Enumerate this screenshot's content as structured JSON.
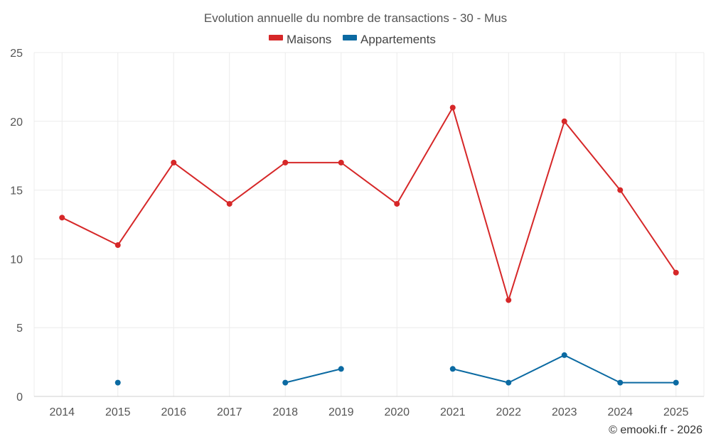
{
  "chart_data": {
    "type": "line",
    "title": "Evolution annuelle du nombre de transactions - 30 - Mus",
    "categories": [
      "2014",
      "2015",
      "2016",
      "2017",
      "2018",
      "2019",
      "2020",
      "2021",
      "2022",
      "2023",
      "2024",
      "2025"
    ],
    "series": [
      {
        "name": "Maisons",
        "color": "#d62728",
        "values": [
          13,
          11,
          17,
          14,
          17,
          17,
          14,
          21,
          7,
          20,
          15,
          9
        ]
      },
      {
        "name": "Appartements",
        "color": "#0b6aa2",
        "values": [
          null,
          1,
          null,
          null,
          1,
          2,
          null,
          2,
          1,
          3,
          1,
          1
        ]
      }
    ],
    "ylim": [
      0,
      25
    ],
    "yticks": [
      0,
      5,
      10,
      15,
      20,
      25
    ],
    "xlabel": "",
    "ylabel": "",
    "grid": true,
    "legend": "top-center"
  },
  "credit": "© emooki.fr - 2026"
}
